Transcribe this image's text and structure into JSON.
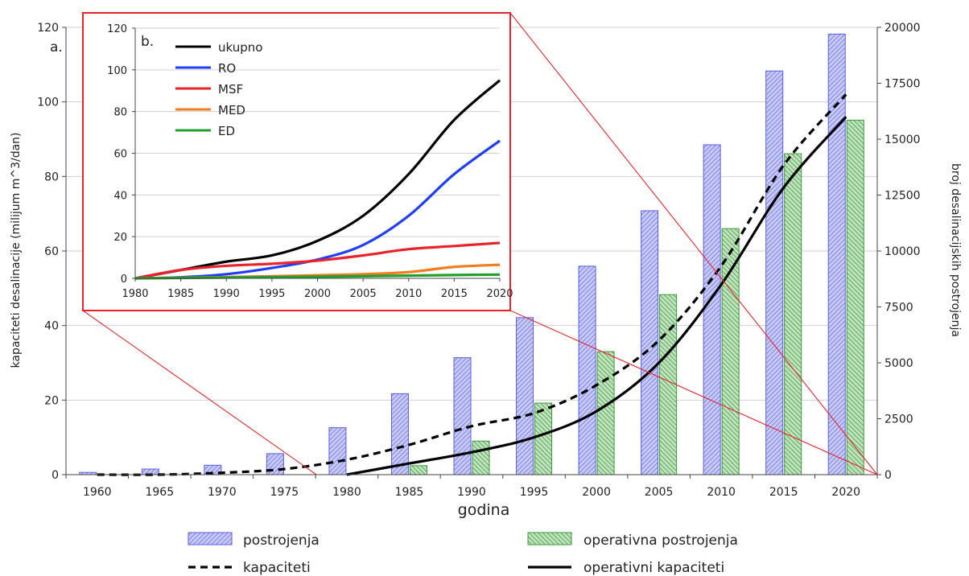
{
  "chart_data": [
    {
      "type": "bar",
      "panel_label": "a.",
      "xlabel": "godina",
      "ylabel": "kapaciteti desalinacije (milijum m^3/dan)",
      "y2label": "broj desalinacijskih postrojenja",
      "categories": [
        "1960",
        "1965",
        "1970",
        "1975",
        "1980",
        "1985",
        "1990",
        "1995",
        "2000",
        "2005",
        "2010",
        "2015",
        "2020"
      ],
      "ylim": [
        0,
        120
      ],
      "yticks": [
        0,
        20,
        40,
        60,
        80,
        100,
        120
      ],
      "y2lim": [
        0,
        20000
      ],
      "y2ticks": [
        0,
        2500,
        5000,
        7500,
        10000,
        12500,
        15000,
        17500,
        20000
      ],
      "grid": true,
      "legend_position": "bottom",
      "bar_series": [
        {
          "name": "postrojenja",
          "axis": "right",
          "color": "#5a5ee6",
          "values": [
            100,
            250,
            420,
            940,
            2100,
            3620,
            5230,
            7020,
            9320,
            11800,
            14750,
            18050,
            19700
          ]
        },
        {
          "name": "operativna postrojenja",
          "axis": "right",
          "color": "#3a9a3a",
          "values": [
            null,
            null,
            null,
            null,
            null,
            400,
            1500,
            3200,
            5500,
            8050,
            11000,
            14350,
            15850
          ]
        }
      ],
      "line_series": [
        {
          "name": "kapaciteti",
          "axis": "left",
          "style": "dashed",
          "x": [
            1960,
            1965,
            1970,
            1975,
            1980,
            1985,
            1990,
            1995,
            2000,
            2005,
            2010,
            2015,
            2020
          ],
          "values": [
            0,
            0,
            0.5,
            1.5,
            4,
            8,
            13,
            16.5,
            24,
            36,
            56,
            83,
            102
          ]
        },
        {
          "name": "operativni kapaciteti",
          "axis": "left",
          "style": "solid",
          "x": [
            1980,
            1985,
            1990,
            1995,
            2000,
            2005,
            2010,
            2015,
            2020
          ],
          "values": [
            0,
            3,
            6,
            10,
            17,
            30,
            51,
            77,
            96
          ]
        }
      ]
    },
    {
      "type": "line",
      "panel_label": "b.",
      "x": [
        1980,
        1985,
        1990,
        1995,
        2000,
        2005,
        2010,
        2015,
        2020
      ],
      "xticks": [
        "1980",
        "1985",
        "1990",
        "1995",
        "2000",
        "2005",
        "2010",
        "2015",
        "2020"
      ],
      "ylim": [
        0,
        120
      ],
      "yticks": [
        0,
        20,
        40,
        60,
        80,
        100,
        120
      ],
      "grid": true,
      "legend_position": "top-left",
      "series": [
        {
          "name": "ukupno",
          "color": "#000000",
          "values": [
            0,
            4,
            8,
            11,
            18,
            30,
            50,
            76,
            95
          ]
        },
        {
          "name": "RO",
          "color": "#1f3ef5",
          "values": [
            0,
            0.5,
            2,
            5,
            9,
            16,
            30,
            50,
            66
          ]
        },
        {
          "name": "MSF",
          "color": "#e8242a",
          "values": [
            0,
            4,
            6,
            7,
            8.5,
            11,
            14,
            15.5,
            17
          ]
        },
        {
          "name": "MED",
          "color": "#f07d20",
          "values": [
            0,
            0.3,
            0.6,
            1,
            1.5,
            2,
            3,
            5.5,
            6.5
          ]
        },
        {
          "name": "ED",
          "color": "#22a02f",
          "values": [
            0,
            0.2,
            0.4,
            0.6,
            0.8,
            1,
            1.3,
            1.6,
            1.8
          ]
        }
      ]
    }
  ]
}
